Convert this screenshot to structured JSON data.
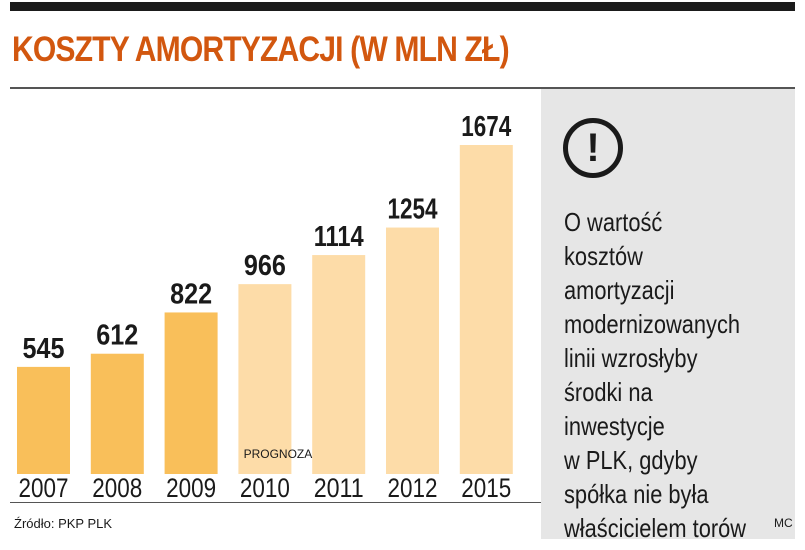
{
  "header": {
    "title": "KOSZTY AMORTYZACJI (W MLN ZŁ)"
  },
  "chart_data": {
    "type": "bar",
    "categories": [
      "2007",
      "2008",
      "2009",
      "2010",
      "2011",
      "2012",
      "2015"
    ],
    "values": [
      545,
      612,
      822,
      966,
      1114,
      1254,
      1674
    ],
    "forecast_from": "2010",
    "forecast_label": "PROGNOZA",
    "title": "KOSZTY AMORTYZACJI (W MLN ZŁ)",
    "xlabel": "",
    "ylabel": "",
    "ylim": [
      0,
      1674
    ],
    "grid": false,
    "legend": "none",
    "colors": {
      "actual": "#f9bf5a",
      "forecast": "#fddca8"
    }
  },
  "note": {
    "icon": "exclamation-icon",
    "text": "O wartość\nkosztów\namortyzacji\nmodernizowanych\nlinii wzrosłyby\nśrodki na inwestycje\nw PLK, gdyby\nspółka nie była\nwłaścicielem torów"
  },
  "footer": {
    "source": "Źródło: PKP PLK",
    "author": "MC"
  },
  "colors": {
    "accent": "#d2570f",
    "panel": "#e6e6e6"
  }
}
